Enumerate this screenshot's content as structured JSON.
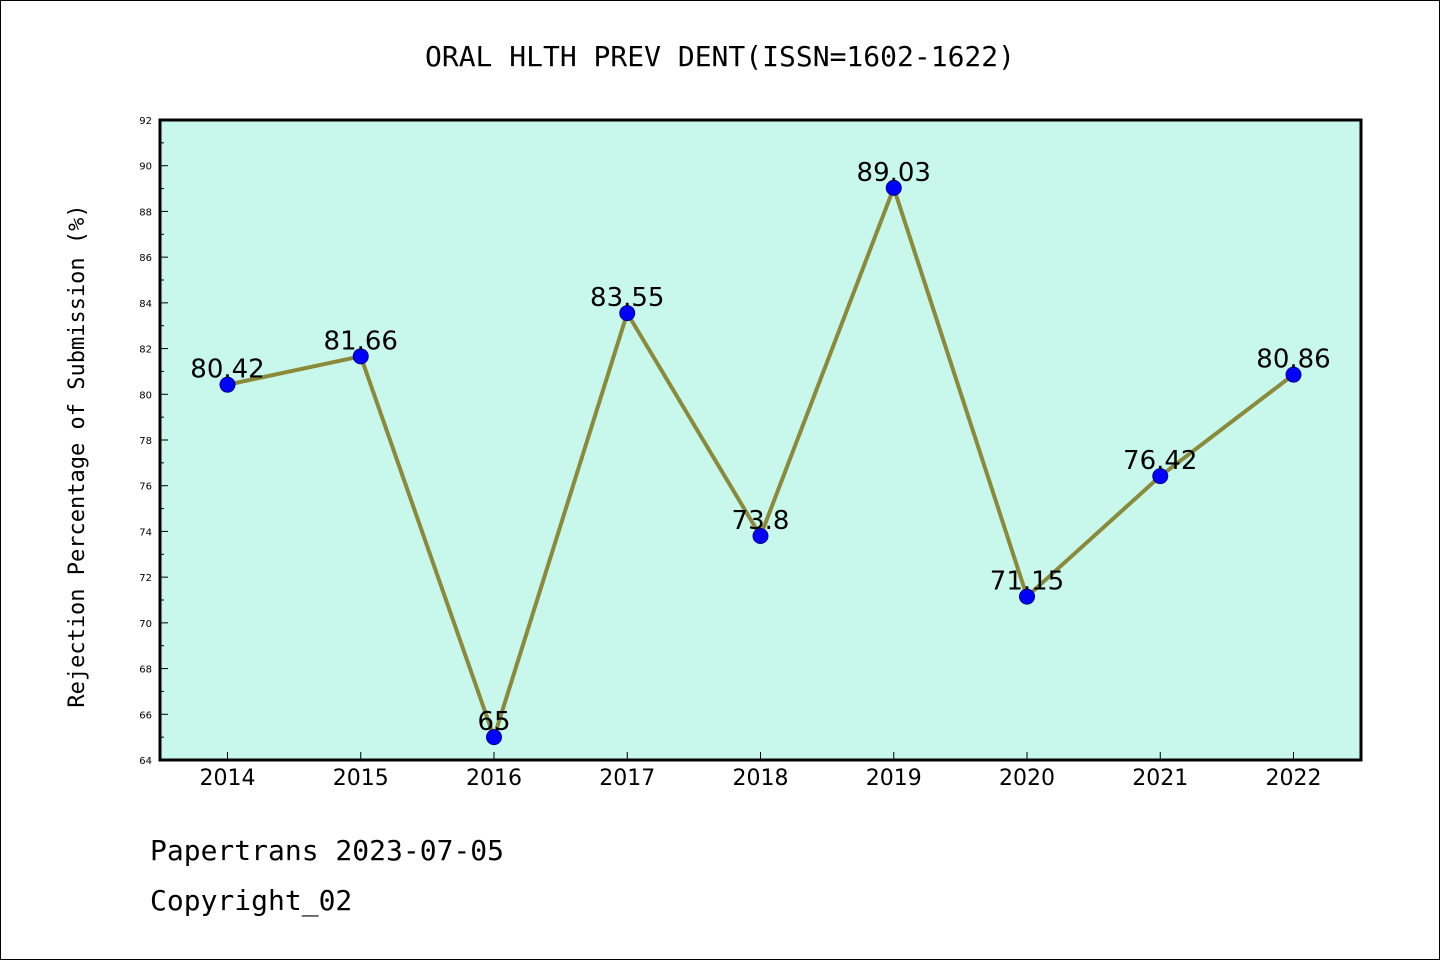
{
  "colors": {
    "plot_background": "#c8f8ec",
    "line": "#8b8a3a",
    "marker": "#0000ff"
  },
  "chart_data": {
    "type": "line",
    "title": "ORAL HLTH PREV DENT(ISSN=1602-1622)",
    "xlabel": "",
    "ylabel": "Rejection Percentage of Submission (%)",
    "categories": [
      "2014",
      "2015",
      "2016",
      "2017",
      "2018",
      "2019",
      "2020",
      "2021",
      "2022"
    ],
    "values": [
      80.42,
      81.66,
      65,
      83.55,
      73.8,
      89.03,
      71.15,
      76.42,
      80.86
    ],
    "data_labels": [
      "80.42",
      "81.66",
      "65",
      "83.55",
      "73.8",
      "89.03",
      "71.15",
      "76.42",
      "80.86"
    ],
    "ylim": [
      64,
      92
    ],
    "y_ticks": [
      "64",
      "66",
      "68",
      "70",
      "72",
      "74",
      "76",
      "78",
      "80",
      "82",
      "84",
      "86",
      "88",
      "90",
      "92"
    ],
    "grid": false,
    "legend": "none"
  },
  "footer": {
    "line1": "Papertrans 2023-07-05",
    "line2": "Copyright_02"
  }
}
